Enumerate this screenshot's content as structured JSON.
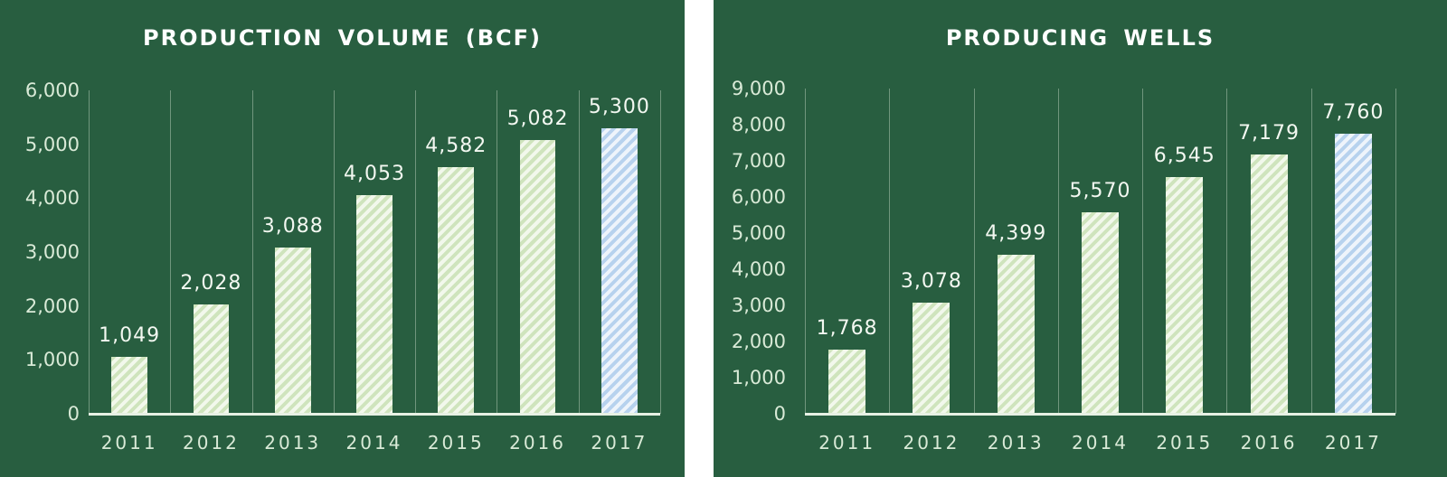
{
  "chart_data": [
    {
      "type": "bar",
      "title": "PRODUCTION VOLUME (BCF)",
      "categories": [
        "2011",
        "2012",
        "2013",
        "2014",
        "2015",
        "2016",
        "2017"
      ],
      "values": [
        1049,
        2028,
        3088,
        4053,
        4582,
        5082,
        5300
      ],
      "data_labels": [
        "1,049",
        "2,028",
        "3,088",
        "4,053",
        "4,582",
        "5,082",
        "5,300"
      ],
      "bar_colors": [
        "green",
        "green",
        "green",
        "green",
        "green",
        "green",
        "blue"
      ],
      "xlabel": "",
      "ylabel": "",
      "ylim": [
        0,
        6000
      ],
      "yticks": [
        "0",
        "1,000",
        "2,000",
        "3,000",
        "4,000",
        "5,000",
        "6,000"
      ],
      "grid": "vertical",
      "legend": "none"
    },
    {
      "type": "bar",
      "title": "PRODUCING WELLS",
      "categories": [
        "2011",
        "2012",
        "2013",
        "2014",
        "2015",
        "2016",
        "2017"
      ],
      "values": [
        1768,
        3078,
        4399,
        5570,
        6545,
        7179,
        7760
      ],
      "data_labels": [
        "1,768",
        "3,078",
        "4,399",
        "5,570",
        "6,545",
        "7,179",
        "7,760"
      ],
      "bar_colors": [
        "green",
        "green",
        "green",
        "green",
        "green",
        "green",
        "blue"
      ],
      "xlabel": "",
      "ylabel": "",
      "ylim": [
        0,
        9000
      ],
      "yticks": [
        "0",
        "1,000",
        "2,000",
        "3,000",
        "4,000",
        "5,000",
        "6,000",
        "7,000",
        "8,000",
        "9,000"
      ],
      "grid": "vertical",
      "legend": "none"
    }
  ],
  "colors": {
    "panel_background": "#285e40",
    "bar_green": "#cfe4bd",
    "bar_blue": "#b7d2ee",
    "text": "#ffffff"
  }
}
